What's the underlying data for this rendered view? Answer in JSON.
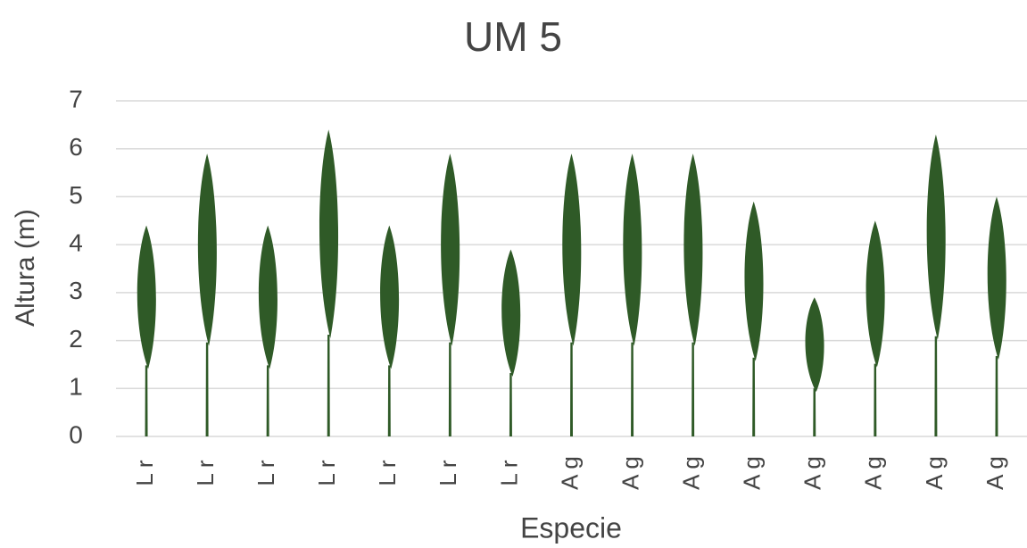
{
  "chart_data": {
    "type": "bar",
    "title": "UM 5",
    "x_label": "Especie",
    "y_label": "Altura (m)",
    "categories": [
      "Lr",
      "Lr",
      "Lr",
      "Lr",
      "Lr",
      "Lr",
      "Lr",
      "Ag",
      "Ag",
      "Ag",
      "Ag",
      "Ag",
      "Ag",
      "Ag",
      "Ag"
    ],
    "values": [
      4.4,
      5.9,
      4.4,
      6.4,
      4.4,
      5.9,
      3.9,
      5.9,
      5.9,
      5.9,
      4.9,
      2.9,
      4.5,
      6.3,
      5.0
    ],
    "color": "#2f5a27",
    "ylim": [
      0,
      7
    ],
    "yticks": [
      0,
      1,
      2,
      3,
      4,
      5,
      6,
      7
    ],
    "grid": true
  }
}
